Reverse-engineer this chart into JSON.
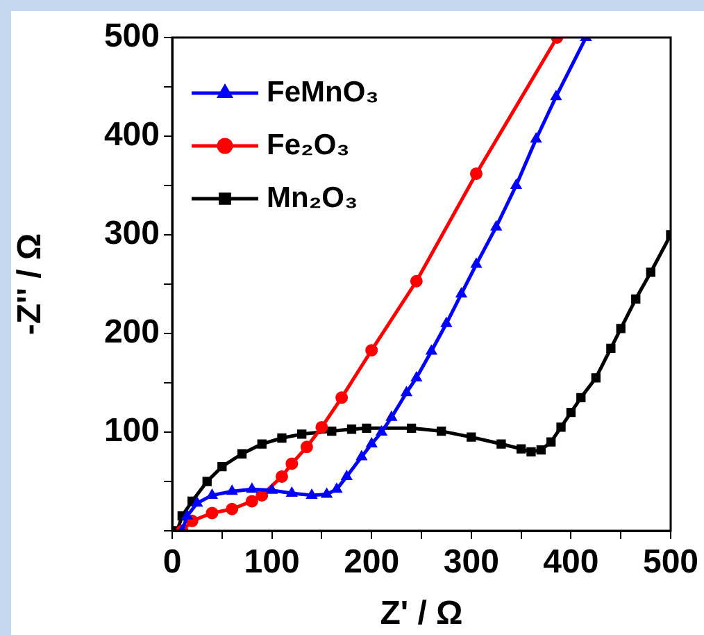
{
  "chart_data": {
    "type": "line",
    "xlabel": "Z' / Ω",
    "ylabel": "-Z'' / Ω",
    "xlim": [
      0,
      500
    ],
    "ylim": [
      0,
      500
    ],
    "xticks": [
      0,
      {
        "value": 50,
        "label": null
      },
      100,
      {
        "value": 150,
        "label": null
      },
      200,
      {
        "value": 250,
        "label": null
      },
      300,
      {
        "value": 350,
        "label": null
      },
      400,
      {
        "value": 450,
        "label": null
      },
      500
    ],
    "yticks": [
      {
        "value": 0,
        "label": null
      },
      {
        "value": 50,
        "label": null
      },
      100,
      {
        "value": 150,
        "label": null
      },
      200,
      {
        "value": 250,
        "label": null
      },
      300,
      {
        "value": 350,
        "label": null
      },
      400,
      {
        "value": 450,
        "label": null
      },
      500
    ],
    "grid": false,
    "legend": "top left",
    "line_style": "solid",
    "series": [
      {
        "name": "FeMnO₃",
        "color": "#0000ff",
        "marker": "triangle",
        "x": [
          10,
          15,
          25,
          40,
          60,
          80,
          100,
          120,
          140,
          155,
          165,
          175,
          190,
          200,
          210,
          220,
          235,
          245,
          260,
          275,
          290,
          305,
          325,
          345,
          365,
          385,
          415
        ],
        "values": [
          0,
          15,
          28,
          36,
          40,
          42,
          41,
          38,
          36,
          37,
          42,
          55,
          75,
          88,
          100,
          115,
          140,
          155,
          182,
          210,
          240,
          270,
          308,
          350,
          397,
          440,
          500
        ]
      },
      {
        "name": "Fe₂O₃",
        "color": "#ff0000",
        "marker": "circle",
        "x": [
          10,
          20,
          40,
          60,
          80,
          90,
          110,
          120,
          135,
          150,
          170,
          200,
          245,
          305,
          386
        ],
        "values": [
          0,
          10,
          18,
          22,
          30,
          36,
          55,
          68,
          85,
          105,
          135,
          183,
          253,
          362,
          500
        ]
      },
      {
        "name": "Mn₂O₃",
        "color": "#000000",
        "marker": "square",
        "x": [
          5,
          10,
          20,
          35,
          50,
          70,
          90,
          110,
          130,
          160,
          180,
          195,
          240,
          270,
          300,
          330,
          350,
          360,
          370,
          380,
          390,
          400,
          410,
          425,
          440,
          450,
          465,
          480,
          500
        ],
        "values": [
          0,
          15,
          30,
          50,
          65,
          78,
          88,
          94,
          98,
          101,
          103,
          104,
          104,
          101,
          95,
          88,
          83,
          80,
          82,
          90,
          105,
          120,
          135,
          155,
          185,
          205,
          235,
          262,
          300
        ]
      }
    ]
  }
}
